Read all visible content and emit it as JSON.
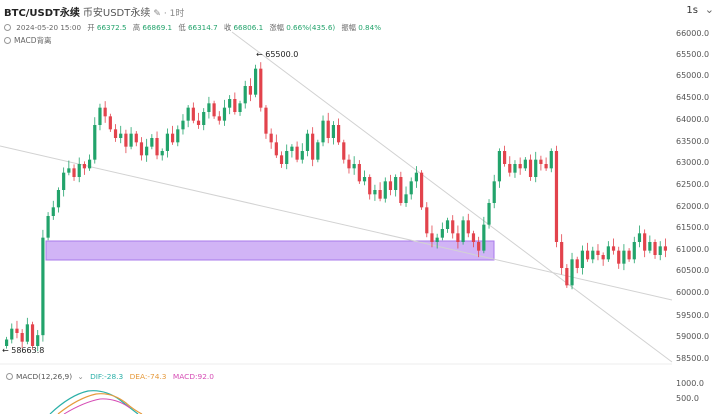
{
  "header": {
    "symbol": "BTC/USDT永续",
    "exchange": "币安USDT永续",
    "edit_icon": "edit-icon",
    "timeframe": "1时",
    "interval_label": "1s",
    "collapse_icon": "chevron-down-icon"
  },
  "ohlc": {
    "date": "2024-05-20 15:00",
    "open_label": "开",
    "open": "66372.5",
    "high_label": "高",
    "high": "66869.1",
    "low_label": "低",
    "low": "66314.7",
    "close_label": "收",
    "close": "66806.1",
    "change_label": "涨幅",
    "change": "0.66%(435.6)",
    "amp_label": "振幅",
    "amp": "0.84%"
  },
  "indicator": {
    "label": "MACD背离",
    "eye_icon": "eye-icon"
  },
  "macd": {
    "name": "MACD(12,26,9)",
    "dif": "DIF:-28.3",
    "dea": "DEA:-74.3",
    "macd": "MACD:92.0"
  },
  "price_axis": [
    "66000.0",
    "65500.0",
    "65000.0",
    "64500.0",
    "64000.0",
    "63500.0",
    "63000.0",
    "62500.0",
    "62000.0",
    "61500.0",
    "61000.0",
    "60500.0",
    "60000.0",
    "59500.0",
    "59000.0",
    "58500.0"
  ],
  "macd_axis": [
    "1000.0",
    "500.0"
  ],
  "annotations": {
    "high": "65500.0",
    "low": "58663.8"
  },
  "colors": {
    "up": "#22a36b",
    "down": "#e2434c",
    "zone": "#b98ff2",
    "trend": "#cfcfcf"
  },
  "chart_data": {
    "type": "candlestick",
    "y_range": [
      58300,
      66200
    ],
    "close_series": [
      58950,
      59200,
      59100,
      58900,
      59300,
      58800,
      59050,
      61300,
      61800,
      62000,
      62400,
      62800,
      62900,
      62700,
      63000,
      62900,
      63100,
      63900,
      64300,
      64100,
      63800,
      63600,
      63700,
      63400,
      63700,
      63500,
      63200,
      63400,
      63600,
      63200,
      63300,
      63700,
      63500,
      63800,
      64000,
      64300,
      64000,
      63900,
      64200,
      64400,
      64100,
      64000,
      64300,
      64500,
      64200,
      64400,
      64800,
      64600,
      65200,
      64300,
      63700,
      63500,
      63200,
      63000,
      63300,
      63400,
      63100,
      63300,
      63700,
      63100,
      63500,
      64000,
      63600,
      63900,
      63500,
      63100,
      62900,
      63000,
      62600,
      62700,
      62300,
      62400,
      62200,
      62600,
      62400,
      62700,
      62100,
      62300,
      62600,
      62800,
      62000,
      61400,
      61200,
      61300,
      61500,
      61700,
      61400,
      61200,
      61700,
      61400,
      61200,
      61000,
      61600,
      62100,
      62600,
      63300,
      63000,
      62800,
      63000,
      62900,
      63100,
      62700,
      63100,
      63000,
      62900,
      63300,
      61200,
      60600,
      60200,
      60800,
      60600,
      61000,
      60800,
      61000,
      60900,
      60800,
      61100,
      61000,
      60700,
      61000,
      60800,
      61200,
      61400,
      61000,
      61200,
      60900,
      61100,
      61000
    ]
  }
}
